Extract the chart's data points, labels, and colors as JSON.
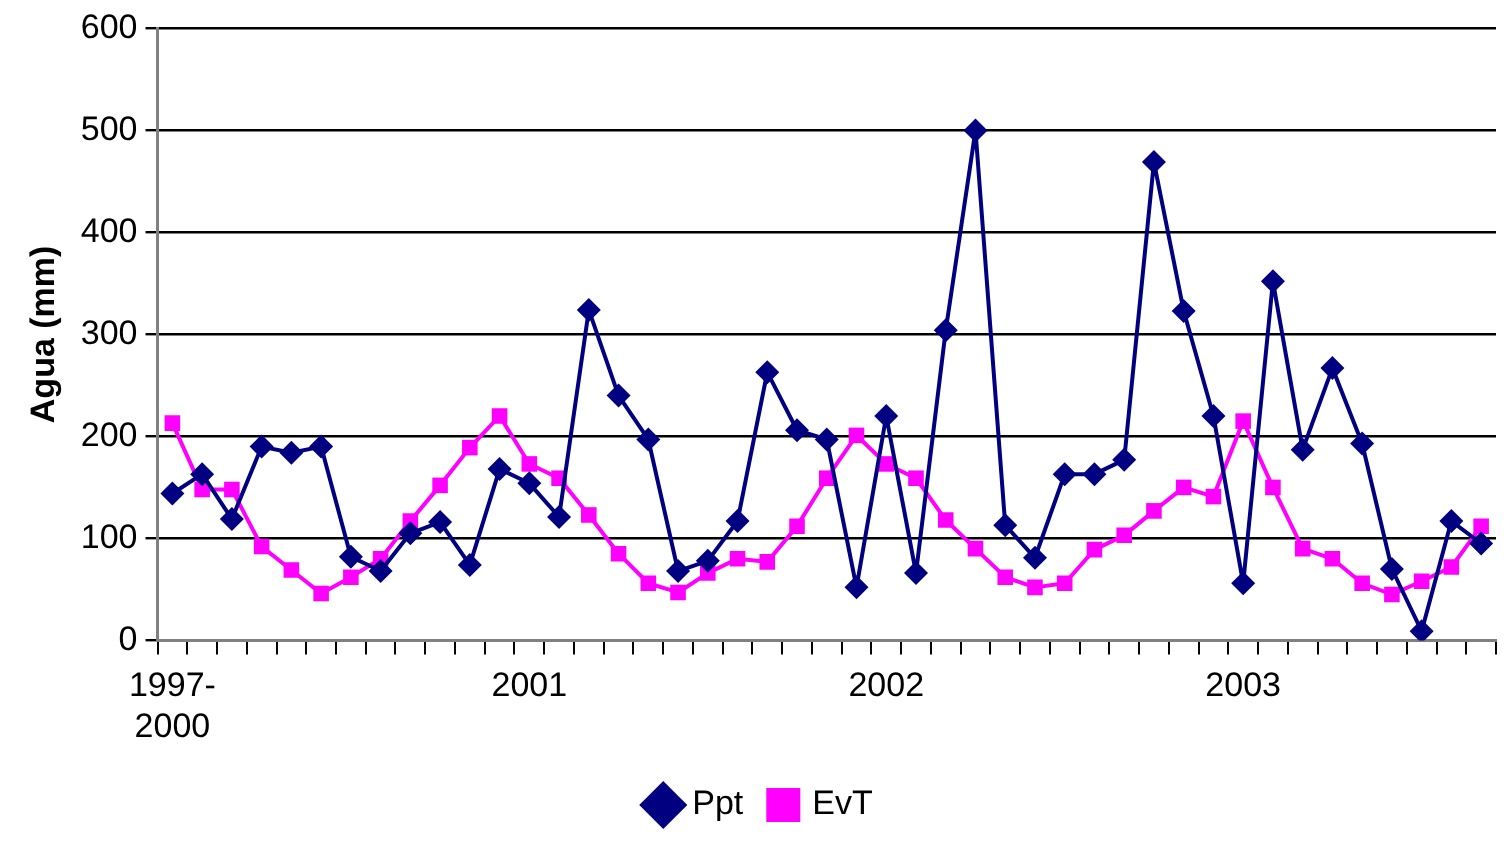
{
  "chart_data": {
    "type": "line",
    "ylabel": "Agua (mm)",
    "categories": [
      "1997-2000",
      null,
      null,
      null,
      null,
      null,
      null,
      null,
      null,
      null,
      null,
      null,
      "2001",
      null,
      null,
      null,
      null,
      null,
      null,
      null,
      null,
      null,
      null,
      null,
      "2002",
      null,
      null,
      null,
      null,
      null,
      null,
      null,
      null,
      null,
      null,
      null,
      "2003",
      null,
      null,
      null,
      null,
      null,
      null,
      null,
      null
    ],
    "series": [
      {
        "name": "Ppt",
        "color": "#000080",
        "marker": "diamond",
        "values": [
          144,
          163,
          119,
          190,
          184,
          190,
          82,
          68,
          105,
          116,
          74,
          168,
          154,
          121,
          324,
          240,
          197,
          68,
          78,
          117,
          263,
          206,
          197,
          52,
          220,
          66,
          304,
          500,
          113,
          81,
          163,
          163,
          177,
          469,
          323,
          220,
          56,
          352,
          187,
          267,
          193,
          70,
          9,
          117,
          95
        ]
      },
      {
        "name": "EvT",
        "color": "#ff00ff",
        "marker": "square",
        "values": [
          213,
          148,
          148,
          92,
          69,
          46,
          62,
          80,
          117,
          152,
          189,
          220,
          173,
          159,
          123,
          85,
          56,
          47,
          66,
          80,
          77,
          112,
          159,
          201,
          173,
          159,
          118,
          90,
          62,
          52,
          56,
          89,
          103,
          127,
          150,
          141,
          215,
          150,
          90,
          80,
          56,
          45,
          58,
          72,
          112
        ]
      }
    ],
    "ylim": [
      0,
      600
    ],
    "yticks": [
      0,
      100,
      200,
      300,
      400,
      500,
      600
    ],
    "grid": "y",
    "legend": "bottom"
  }
}
